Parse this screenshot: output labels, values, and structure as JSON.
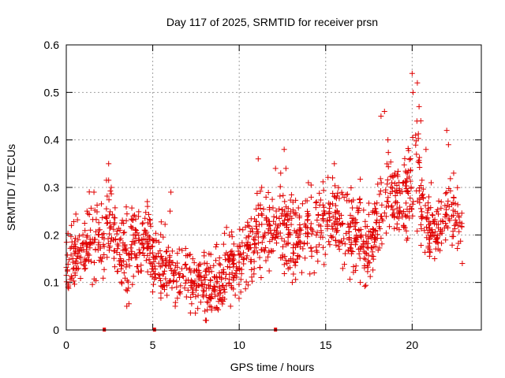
{
  "chart_data": {
    "type": "scatter",
    "title": "Day 117 of 2025, SRMTID for receiver prsn",
    "xlabel": "GPS time / hours",
    "ylabel": "SRMTID / TECUs",
    "xlim": [
      0,
      24
    ],
    "ylim": [
      0,
      0.6
    ],
    "xticks": [
      0,
      5,
      10,
      15,
      20
    ],
    "yticks": [
      0,
      0.1,
      0.2,
      0.3,
      0.4,
      0.5,
      0.6
    ],
    "xtick_labels": [
      "0",
      "5",
      "10",
      "15",
      "20"
    ],
    "ytick_labels": [
      "0",
      "0.1",
      "0.2",
      "0.3",
      "0.4",
      "0.5",
      "0.6"
    ],
    "grid": true,
    "marker": "+",
    "series_color": "#e00000",
    "baseline_markers_x": [
      2.2,
      5.1,
      12.1
    ],
    "trend": [
      [
        0.0,
        0.15
      ],
      [
        1.0,
        0.16
      ],
      [
        1.5,
        0.19
      ],
      [
        2.0,
        0.2
      ],
      [
        2.5,
        0.22
      ],
      [
        3.0,
        0.16
      ],
      [
        4.0,
        0.17
      ],
      [
        4.6,
        0.2
      ],
      [
        5.0,
        0.15
      ],
      [
        6.0,
        0.13
      ],
      [
        7.0,
        0.11
      ],
      [
        8.0,
        0.1
      ],
      [
        8.5,
        0.09
      ],
      [
        9.0,
        0.11
      ],
      [
        10.0,
        0.15
      ],
      [
        11.0,
        0.2
      ],
      [
        12.0,
        0.21
      ],
      [
        12.5,
        0.23
      ],
      [
        13.0,
        0.2
      ],
      [
        14.0,
        0.21
      ],
      [
        15.0,
        0.23
      ],
      [
        15.5,
        0.25
      ],
      [
        16.0,
        0.22
      ],
      [
        17.0,
        0.19
      ],
      [
        17.6,
        0.18
      ],
      [
        18.0,
        0.22
      ],
      [
        18.6,
        0.3
      ],
      [
        19.0,
        0.26
      ],
      [
        19.5,
        0.28
      ],
      [
        20.0,
        0.3
      ],
      [
        20.3,
        0.36
      ],
      [
        20.7,
        0.22
      ],
      [
        21.0,
        0.2
      ],
      [
        21.5,
        0.21
      ],
      [
        22.0,
        0.25
      ],
      [
        22.5,
        0.23
      ],
      [
        22.9,
        0.2
      ]
    ],
    "spread": [
      [
        0.0,
        0.05
      ],
      [
        3.0,
        0.06
      ],
      [
        6.0,
        0.05
      ],
      [
        8.0,
        0.045
      ],
      [
        10.0,
        0.05
      ],
      [
        12.0,
        0.06
      ],
      [
        15.0,
        0.06
      ],
      [
        18.0,
        0.06
      ],
      [
        19.0,
        0.07
      ],
      [
        20.3,
        0.09
      ],
      [
        21.0,
        0.05
      ],
      [
        23.0,
        0.05
      ]
    ],
    "points": [
      [
        0.1,
        0.09
      ],
      [
        0.3,
        0.22
      ],
      [
        0.6,
        0.15
      ],
      [
        1.2,
        0.25
      ],
      [
        1.6,
        0.29
      ],
      [
        2.45,
        0.35
      ],
      [
        2.6,
        0.3
      ],
      [
        3.2,
        0.1
      ],
      [
        3.5,
        0.05
      ],
      [
        4.7,
        0.26
      ],
      [
        6.0,
        0.25
      ],
      [
        6.05,
        0.29
      ],
      [
        6.3,
        0.05
      ],
      [
        8.1,
        0.02
      ],
      [
        8.3,
        0.05
      ],
      [
        8.7,
        0.18
      ],
      [
        9.5,
        0.05
      ],
      [
        11.1,
        0.36
      ],
      [
        11.3,
        0.3
      ],
      [
        12.1,
        0.34
      ],
      [
        12.4,
        0.33
      ],
      [
        12.6,
        0.38
      ],
      [
        12.7,
        0.34
      ],
      [
        14.0,
        0.31
      ],
      [
        15.5,
        0.35
      ],
      [
        15.4,
        0.32
      ],
      [
        16.5,
        0.27
      ],
      [
        17.0,
        0.1
      ],
      [
        18.2,
        0.45
      ],
      [
        18.4,
        0.46
      ],
      [
        18.6,
        0.4
      ],
      [
        19.0,
        0.33
      ],
      [
        19.5,
        0.22
      ],
      [
        20.0,
        0.54
      ],
      [
        20.05,
        0.5
      ],
      [
        20.3,
        0.52
      ],
      [
        20.4,
        0.47
      ],
      [
        20.5,
        0.44
      ],
      [
        20.2,
        0.41
      ],
      [
        20.8,
        0.38
      ],
      [
        21.1,
        0.31
      ],
      [
        21.3,
        0.15
      ],
      [
        22.0,
        0.42
      ],
      [
        22.1,
        0.39
      ],
      [
        22.4,
        0.33
      ],
      [
        22.7,
        0.24
      ],
      [
        22.9,
        0.14
      ]
    ],
    "n_random_points": 1500
  }
}
